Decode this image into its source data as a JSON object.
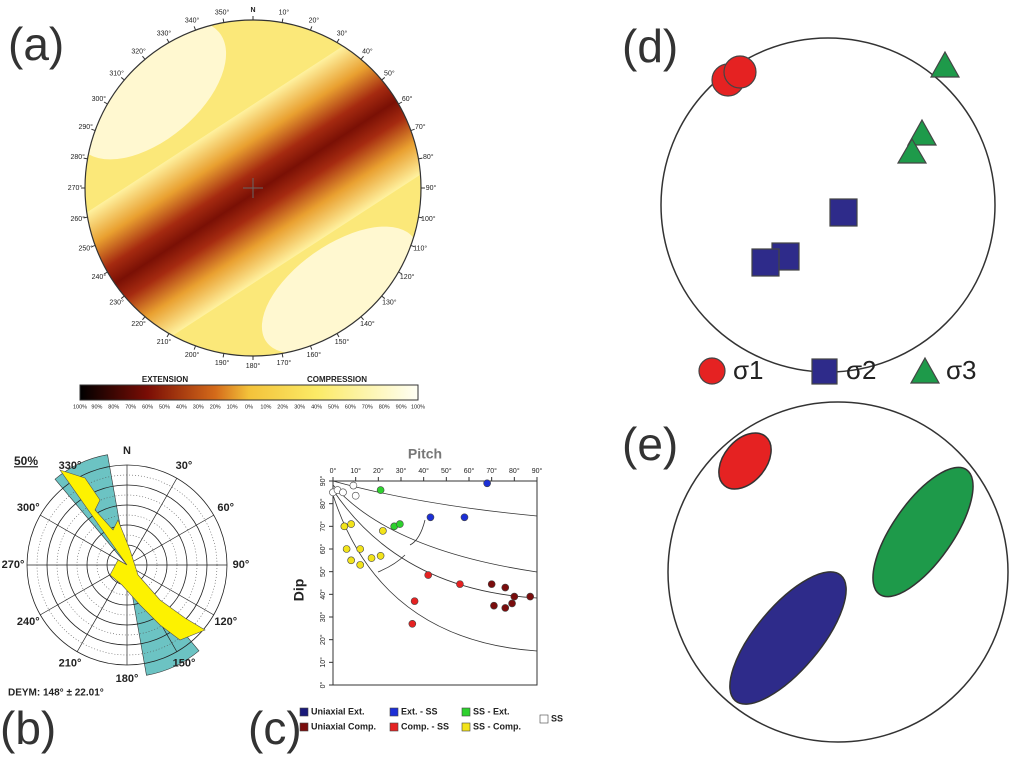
{
  "panel_labels": [
    "(a)",
    "(b)",
    "(c)",
    "(d)",
    "(e)"
  ],
  "stereonet": {
    "azimuth_labels": [
      "N",
      "10°",
      "20°",
      "30°",
      "40°",
      "50°",
      "60°",
      "70°",
      "80°",
      "90°",
      "100°",
      "110°",
      "120°",
      "130°",
      "140°",
      "150°",
      "160°",
      "170°",
      "180°",
      "190°",
      "200°",
      "210°",
      "220°",
      "230°",
      "240°",
      "250°",
      "260°",
      "270°",
      "280°",
      "290°",
      "300°",
      "310°",
      "320°",
      "330°",
      "340°",
      "350°"
    ],
    "extension": "EXTENSION",
    "compression": "COMPRESSION",
    "scale_ticks": [
      "100%",
      "90%",
      "80%",
      "70%",
      "60%",
      "50%",
      "40%",
      "30%",
      "20%",
      "10%",
      "0%",
      "10%",
      "20%",
      "30%",
      "40%",
      "50%",
      "60%",
      "70%",
      "80%",
      "90%",
      "100%"
    ]
  },
  "rose": {
    "labels": [
      "N",
      "30°",
      "60°",
      "90°",
      "120°",
      "150°",
      "180°",
      "210°",
      "240°",
      "270°",
      "300°",
      "330°"
    ],
    "scale": "50%",
    "caption": "DEYM: 148° ± 22.01°"
  },
  "chart_data": {
    "type": "scatter",
    "title": "Pitch",
    "y_label": "Dip",
    "xlim": [
      0,
      90
    ],
    "ylim": [
      0,
      90
    ],
    "xticks": [
      {
        "value": 0,
        "label": "0°"
      },
      {
        "value": 10,
        "label": "10°"
      },
      {
        "value": 20,
        "label": "20°"
      },
      {
        "value": 30,
        "label": "30°"
      },
      {
        "value": 40,
        "label": "40°"
      },
      {
        "value": 50,
        "label": "50°"
      },
      {
        "value": 60,
        "label": "60°"
      },
      {
        "value": 70,
        "label": "70°"
      },
      {
        "value": 80,
        "label": "80°"
      },
      {
        "value": 90,
        "label": "90°"
      }
    ],
    "yticks": [
      {
        "value": 0,
        "label": "0°"
      },
      {
        "value": 10,
        "label": "10°"
      },
      {
        "value": 20,
        "label": "20°"
      },
      {
        "value": 30,
        "label": "30°"
      },
      {
        "value": 40,
        "label": "40°"
      },
      {
        "value": 50,
        "label": "50°"
      },
      {
        "value": 60,
        "label": "60°"
      },
      {
        "value": 70,
        "label": "70°"
      },
      {
        "value": 80,
        "label": "80°"
      },
      {
        "value": 90,
        "label": "90°"
      }
    ],
    "series": [
      {
        "name": "Uniaxial Ext.",
        "color": "#1a1a7a",
        "x": [],
        "values": []
      },
      {
        "name": "Ext. - SS",
        "color": "#1c2fd6",
        "x": [
          68,
          43,
          58
        ],
        "values": [
          89,
          74,
          74
        ]
      },
      {
        "name": "SS - Ext.",
        "color": "#2ed12e",
        "x": [
          21,
          27,
          29.5
        ],
        "values": [
          86,
          70,
          71
        ]
      },
      {
        "name": "Uniaxial Comp.",
        "color": "#7a0d0d",
        "x": [
          70,
          76,
          71,
          76,
          79,
          80,
          87
        ],
        "values": [
          44.5,
          43,
          35,
          34,
          36,
          39,
          39
        ]
      },
      {
        "name": "Comp. - SS",
        "color": "#e52222",
        "x": [
          42,
          56,
          36,
          35
        ],
        "values": [
          48.5,
          44.5,
          37,
          27
        ]
      },
      {
        "name": "SS - Comp.",
        "color": "#f2e31a",
        "x": [
          5,
          8,
          6,
          12,
          8,
          12,
          17,
          22,
          21
        ],
        "values": [
          70,
          71,
          60,
          60,
          55,
          53,
          56,
          68,
          57
        ]
      },
      {
        "name": "SS",
        "color": "#ffffff",
        "x": [
          0,
          2,
          4.4,
          9,
          10
        ],
        "values": [
          85,
          86,
          85,
          88,
          83.5
        ]
      }
    ]
  },
  "stress_legend": [
    "σ1",
    "σ2",
    "σ3"
  ]
}
